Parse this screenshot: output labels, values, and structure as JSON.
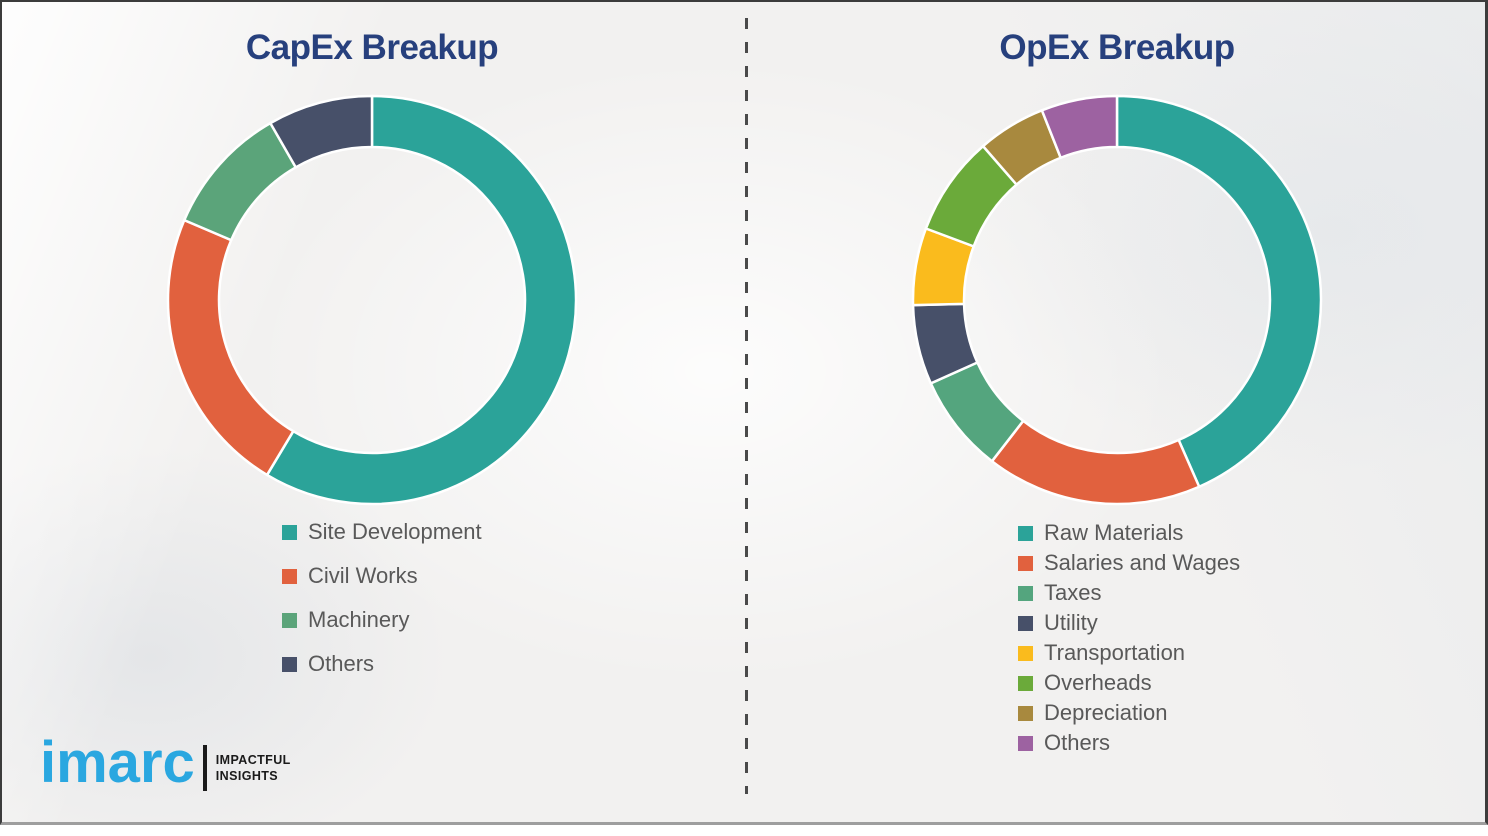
{
  "header": {
    "left_section_title": "CapEx Breakup",
    "right_section_title": "OpEx Breakup"
  },
  "chart_data": [
    {
      "type": "pie",
      "variant": "donut",
      "title": "CapEx Breakup",
      "labels": [
        "Site Development",
        "Civil Works",
        "Machinery",
        "Others"
      ],
      "values": [
        58.6,
        22.8,
        10.3,
        8.3
      ],
      "colors": [
        "#2BA399",
        "#E1613E",
        "#5BA47A",
        "#475069"
      ],
      "units": "percent",
      "start_angle_deg": 0,
      "direction": "clockwise",
      "inner_radius_ratio": 0.75,
      "legend_position": "bottom-left",
      "data_labels_shown": false
    },
    {
      "type": "pie",
      "variant": "donut",
      "title": "OpEx Breakup",
      "labels": [
        "Raw Materials",
        "Salaries and Wages",
        "Taxes",
        "Utility",
        "Transportation",
        "Overheads",
        "Depreciation",
        "Others"
      ],
      "values": [
        43.4,
        17.1,
        7.8,
        6.3,
        6.1,
        7.9,
        5.4,
        6.0
      ],
      "colors": [
        "#2BA399",
        "#E1613E",
        "#54A57E",
        "#475069",
        "#FABB1D",
        "#6BAA3A",
        "#A8893E",
        "#9D62A1"
      ],
      "units": "percent",
      "start_angle_deg": 0,
      "direction": "clockwise",
      "inner_radius_ratio": 0.75,
      "legend_position": "bottom-left",
      "data_labels_shown": false
    }
  ],
  "branding": {
    "logo_text": "imarc",
    "tagline_line1": "IMPACTFUL",
    "tagline_line2": "INSIGHTS"
  },
  "colors": {
    "title_text": "#27407D",
    "legend_text": "#595959",
    "background": "#F2F1F0",
    "divider": "#4A4A4A",
    "frame_border": "#3C3C3C",
    "bottom_rule": "#9E9E9E",
    "segment_gap": "#FFFFFF",
    "logo_blue": "#2AA7E0",
    "logo_black": "#1A1A1A"
  }
}
